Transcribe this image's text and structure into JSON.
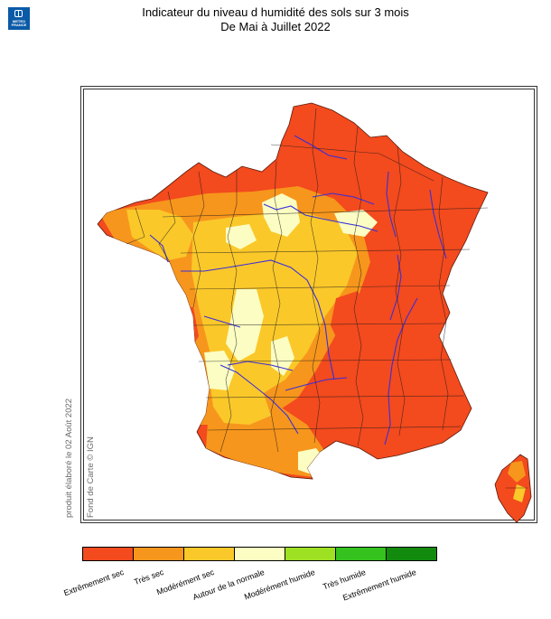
{
  "header": {
    "title_line1": "Indicateur du niveau d humidité des sols sur 3 mois",
    "title_line2": "De Mai à Juillet 2022"
  },
  "logo": {
    "line1": "METEO",
    "line2": "FRANCE",
    "color": "#0a5aa8"
  },
  "notes": {
    "produced": "produit élaboré le 02 Août 2022",
    "basemap": "Fond de Carte © IGN"
  },
  "legend": {
    "items": [
      {
        "label": "Extrêmement sec",
        "color": "#f34a1e"
      },
      {
        "label": "Très sec",
        "color": "#f7961c"
      },
      {
        "label": "Modérément sec",
        "color": "#fbc82a"
      },
      {
        "label": "Autour de la normale",
        "color": "#fbfdc2"
      },
      {
        "label": "Modérément humide",
        "color": "#9ee022"
      },
      {
        "label": "Très humide",
        "color": "#35c21e"
      },
      {
        "label": "Extrêmement humide",
        "color": "#128a0e"
      }
    ]
  },
  "map": {
    "dominant_class": "Extrêmement sec",
    "river_color": "#3a2fd8",
    "boundary_color": "#1a1a1a"
  }
}
